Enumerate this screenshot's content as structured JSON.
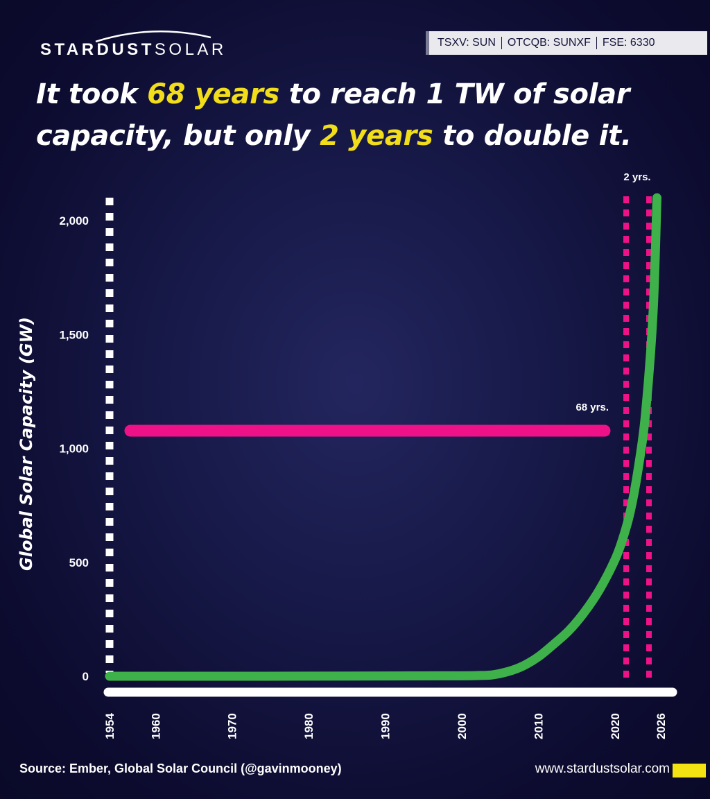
{
  "brand": {
    "logo_bold": "STARDUST",
    "logo_light": "SOLAR",
    "ticker": [
      "TSXV: SUN",
      "OTCQB: SUNXF",
      "FSE: 6330"
    ]
  },
  "headline": {
    "part1": "It took ",
    "highlight1": "68 years",
    "part2": " to reach 1 TW of solar capacity, but only ",
    "highlight2": "2 years",
    "part3": " to double it."
  },
  "colors": {
    "background": "#0d0c31",
    "highlight": "#f2dd1a",
    "curve": "#3fb14a",
    "marker": "#ee1187",
    "axis": "#ffffff"
  },
  "chart_data": {
    "type": "line",
    "title": "It took 68 years to reach 1 TW of solar capacity, but only 2 years to double it.",
    "xlabel": "",
    "ylabel": "Global Solar Capacity (GW)",
    "xlim": [
      1954,
      2026
    ],
    "ylim": [
      0,
      2150
    ],
    "x_ticks": [
      1954,
      1960,
      1970,
      1980,
      1990,
      2000,
      2010,
      2020,
      2026
    ],
    "y_ticks": [
      0,
      500,
      1000,
      1500,
      2000
    ],
    "y_tick_labels": [
      "0",
      "500",
      "1,000",
      "1,500",
      "2,000"
    ],
    "series": [
      {
        "name": "Global Solar Capacity",
        "x": [
          1954,
          1970,
          1990,
          2000,
          2002,
          2004,
          2006,
          2008,
          2010,
          2012,
          2014,
          2016,
          2018,
          2020,
          2021,
          2022,
          2023,
          2024,
          2025,
          2025.5
        ],
        "values": [
          0,
          0,
          1,
          2,
          3,
          6,
          20,
          45,
          85,
          140,
          200,
          280,
          380,
          510,
          600,
          720,
          900,
          1150,
          1600,
          2100
        ]
      }
    ],
    "annotations": [
      {
        "type": "hline",
        "y": 1100,
        "x_start": 1955,
        "x_end": 2022,
        "label": "68 yrs."
      },
      {
        "type": "vline_dashed",
        "x": 1954
      },
      {
        "type": "vline_dashed",
        "x": 2023.8
      },
      {
        "type": "vline_dashed",
        "x": 2025.4,
        "label": "2 yrs."
      }
    ]
  },
  "footer": {
    "source": "Source: Ember, Global Solar Council (@gavinmooney)",
    "url": "www.stardustsolar.com"
  }
}
